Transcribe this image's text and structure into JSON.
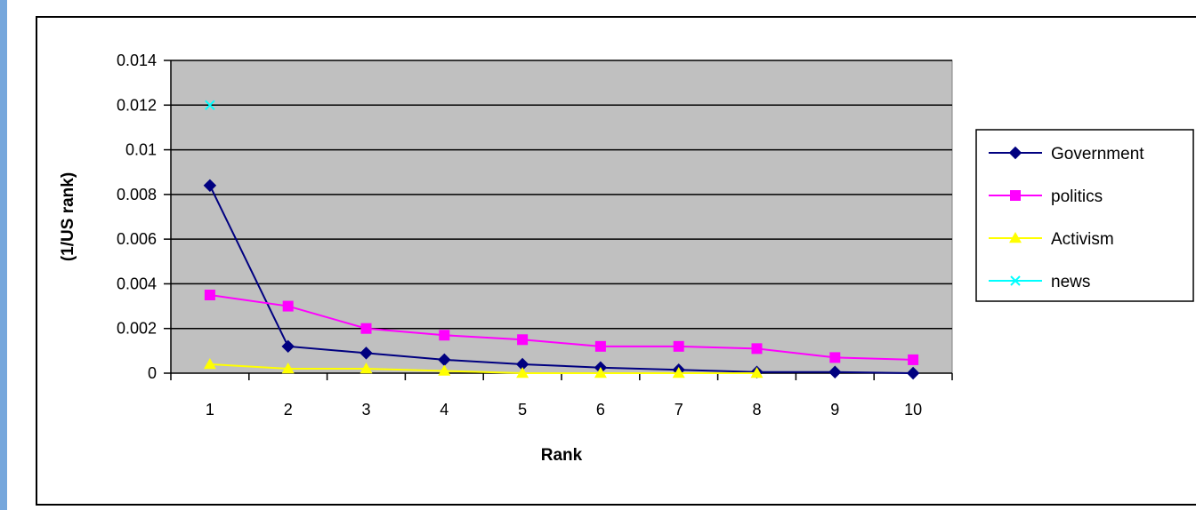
{
  "chart_data": {
    "type": "line",
    "title": "",
    "xlabel": "Rank",
    "ylabel": "(1/US rank)",
    "x": [
      1,
      2,
      3,
      4,
      5,
      6,
      7,
      8,
      9,
      10
    ],
    "ylim": [
      0,
      0.014
    ],
    "yticks": [
      0,
      0.002,
      0.004,
      0.006,
      0.008,
      0.01,
      0.012,
      0.014
    ],
    "ytick_labels": [
      "0",
      "0.002",
      "0.004",
      "0.006",
      "0.008",
      "0.01",
      "0.012",
      "0.014"
    ],
    "xtick_labels": [
      "1",
      "2",
      "3",
      "4",
      "5",
      "6",
      "7",
      "8",
      "9",
      "10"
    ],
    "grid": "horizontal",
    "plot_background": "#c0c0c0",
    "legend_position": "right",
    "series": [
      {
        "name": "Government",
        "color": "#000080",
        "marker": "diamond",
        "values": [
          0.0084,
          0.0012,
          0.0009,
          0.0006,
          0.0004,
          0.00025,
          0.00015,
          5e-05,
          5e-05,
          0.0
        ]
      },
      {
        "name": "politics",
        "color": "#ff00ff",
        "marker": "square",
        "values": [
          0.0035,
          0.003,
          0.002,
          0.0017,
          0.0015,
          0.0012,
          0.0012,
          0.0011,
          0.0007,
          0.0006
        ]
      },
      {
        "name": "Activism",
        "color": "#ffff00",
        "marker": "triangle",
        "values": [
          0.0004,
          0.0002,
          0.0002,
          0.0001,
          0.0,
          0.0,
          0.0,
          0.0,
          null,
          null
        ]
      },
      {
        "name": "news",
        "color": "#00ffff",
        "marker": "x",
        "values": [
          0.012,
          null,
          null,
          null,
          null,
          null,
          null,
          null,
          null,
          null
        ]
      }
    ]
  }
}
